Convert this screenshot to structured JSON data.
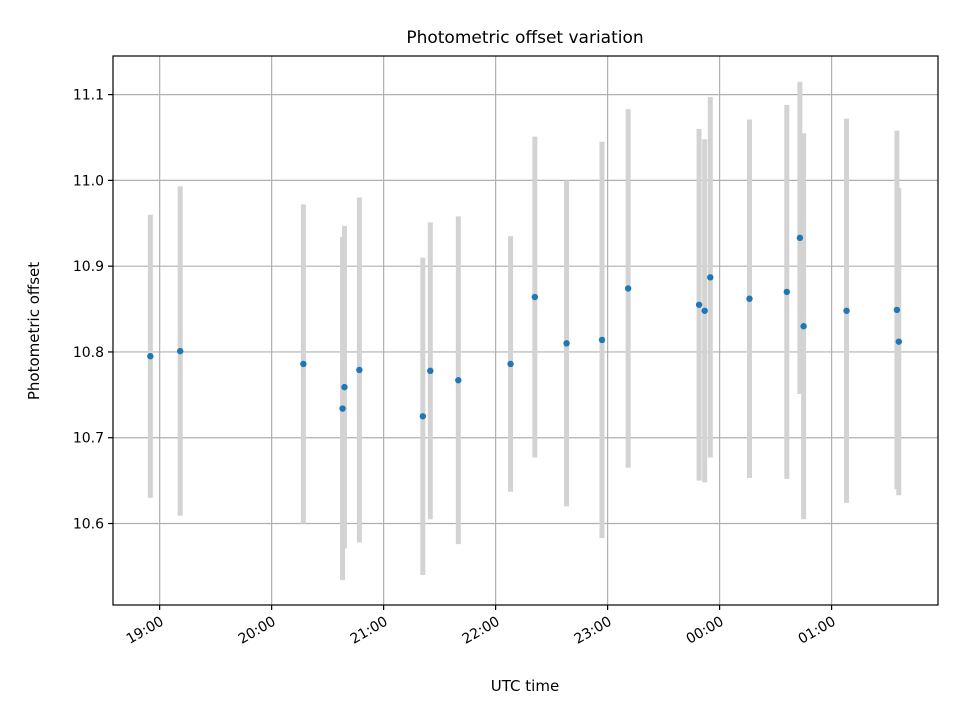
{
  "chart_data": {
    "type": "scatter",
    "title": "Photometric offset variation",
    "xlabel": "UTC time",
    "ylabel": "Photometric offset",
    "grid": true,
    "ylim": [
      10.505,
      11.145
    ],
    "xlim": [
      "18:35",
      "01:57"
    ],
    "x_tick_labels": [
      "19:00",
      "20:00",
      "21:00",
      "22:00",
      "23:00",
      "00:00",
      "01:00"
    ],
    "y_tick_labels": [
      "10.6",
      "10.7",
      "10.8",
      "10.9",
      "11.0",
      "11.1"
    ],
    "y_ticks": [
      10.6,
      10.7,
      10.8,
      10.9,
      11.0,
      11.1
    ],
    "marker_color": "#1f77b4",
    "errorbar_color": "#d3d3d3",
    "points": [
      {
        "t": "18:55",
        "y": 10.795,
        "err": 0.165
      },
      {
        "t": "19:11",
        "y": 10.801,
        "err": 0.192
      },
      {
        "t": "20:17",
        "y": 10.786,
        "err": 0.186
      },
      {
        "t": "20:38",
        "y": 10.734,
        "err": 0.2
      },
      {
        "t": "20:39",
        "y": 10.759,
        "err": 0.188
      },
      {
        "t": "20:47",
        "y": 10.779,
        "err": 0.201
      },
      {
        "t": "21:21",
        "y": 10.725,
        "err": 0.185
      },
      {
        "t": "21:25",
        "y": 10.778,
        "err": 0.173
      },
      {
        "t": "21:40",
        "y": 10.767,
        "err": 0.191
      },
      {
        "t": "22:08",
        "y": 10.786,
        "err": 0.149
      },
      {
        "t": "22:21",
        "y": 10.864,
        "err": 0.187
      },
      {
        "t": "22:38",
        "y": 10.81,
        "err": 0.19
      },
      {
        "t": "22:57",
        "y": 10.814,
        "err": 0.231
      },
      {
        "t": "23:11",
        "y": 10.874,
        "err": 0.209
      },
      {
        "t": "23:49",
        "y": 10.855,
        "err": 0.205
      },
      {
        "t": "23:52",
        "y": 10.848,
        "err": 0.2
      },
      {
        "t": "23:55",
        "y": 10.887,
        "err": 0.21
      },
      {
        "t": "00:16",
        "y": 10.862,
        "err": 0.209
      },
      {
        "t": "00:36",
        "y": 10.87,
        "err": 0.218
      },
      {
        "t": "00:43",
        "y": 10.933,
        "err": 0.182
      },
      {
        "t": "00:45",
        "y": 10.83,
        "err": 0.225
      },
      {
        "t": "01:08",
        "y": 10.848,
        "err": 0.224
      },
      {
        "t": "01:35",
        "y": 10.849,
        "err": 0.209
      },
      {
        "t": "01:36",
        "y": 10.812,
        "err": 0.179
      }
    ]
  }
}
